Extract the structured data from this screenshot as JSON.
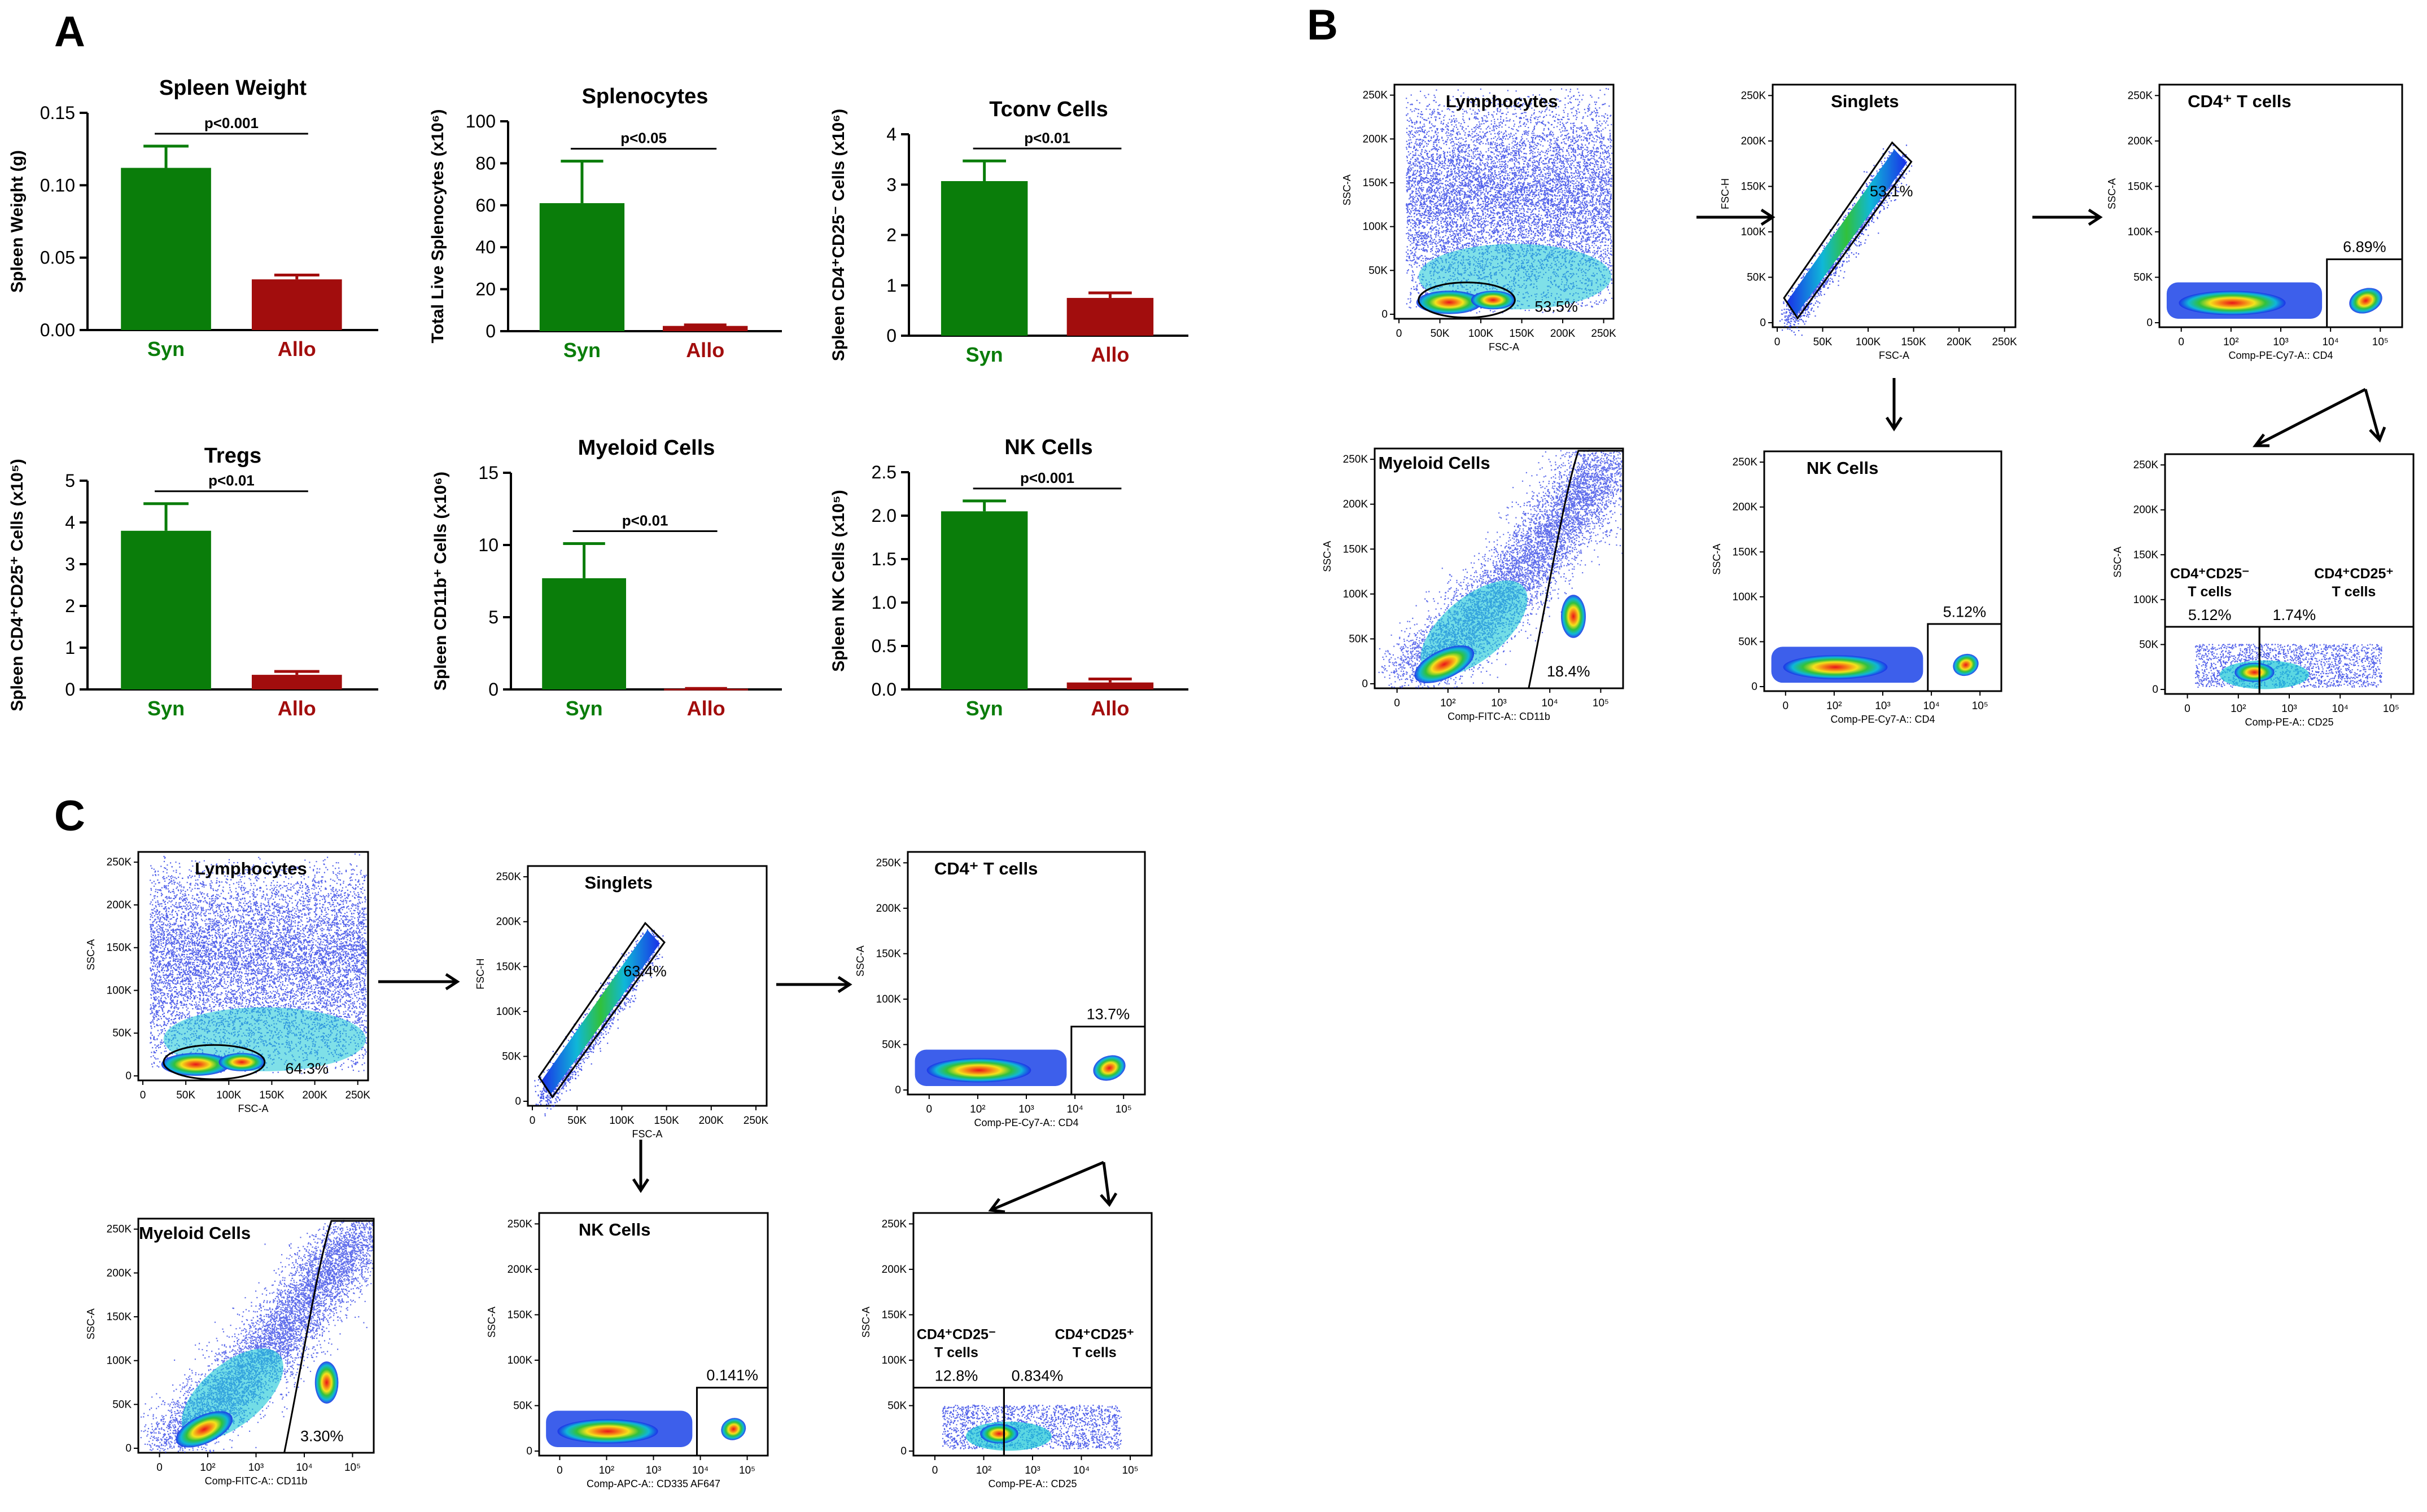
{
  "figure": {
    "panel_labels": {
      "A": "A",
      "B": "B",
      "C": "C"
    },
    "colors": {
      "syn": "#0a7d0a",
      "allo": "#a20d0d"
    }
  },
  "chart_data": [
    {
      "type": "bar",
      "title": "Spleen Weight",
      "ylabel": "Spleen Weight (g)",
      "ylim": [
        0,
        0.15
      ],
      "yticks": [
        "0.00",
        "0.05",
        "0.10",
        "0.15"
      ],
      "categories": [
        "Syn",
        "Allo"
      ],
      "values": [
        0.112,
        0.035
      ],
      "errors": [
        0.015,
        0.003
      ],
      "sig": "p<0.001"
    },
    {
      "type": "bar",
      "title": "Splenocytes",
      "ylabel": "Total Live Splenocytes (x10⁶)",
      "ylim": [
        0,
        100
      ],
      "yticks": [
        "0",
        "20",
        "40",
        "60",
        "80",
        "100"
      ],
      "categories": [
        "Syn",
        "Allo"
      ],
      "values": [
        61,
        2.5
      ],
      "errors": [
        20,
        0.5
      ],
      "sig": "p<0.05"
    },
    {
      "type": "bar",
      "title": "Tconv Cells",
      "ylabel": "Spleen CD4⁺CD25⁻ Cells (x10⁶)",
      "ylim": [
        0,
        4
      ],
      "yticks": [
        "0",
        "1",
        "2",
        "3",
        "4"
      ],
      "categories": [
        "Syn",
        "Allo"
      ],
      "values": [
        3.07,
        0.75
      ],
      "errors": [
        0.4,
        0.1
      ],
      "sig": "p<0.01"
    },
    {
      "type": "bar",
      "title": "Tregs",
      "ylabel": "Spleen CD4⁺CD25⁺ Cells (x10⁵)",
      "ylim": [
        0,
        5
      ],
      "yticks": [
        "0",
        "1",
        "2",
        "3",
        "4",
        "5"
      ],
      "categories": [
        "Syn",
        "Allo"
      ],
      "values": [
        3.8,
        0.35
      ],
      "errors": [
        0.65,
        0.08
      ],
      "sig": "p<0.01"
    },
    {
      "type": "bar",
      "title": "Myeloid Cells",
      "ylabel": "Spleen CD11b⁺ Cells (x10⁶)",
      "ylim": [
        0,
        15
      ],
      "yticks": [
        "0",
        "5",
        "10",
        "15"
      ],
      "categories": [
        "Syn",
        "Allo"
      ],
      "values": [
        7.7,
        0.05
      ],
      "errors": [
        2.4,
        0.02
      ],
      "sig": "p<0.01"
    },
    {
      "type": "bar",
      "title": "NK Cells",
      "ylabel": "Spleen NK Cells (x10⁵)",
      "ylim": [
        0,
        2.5
      ],
      "yticks": [
        "0.0",
        "0.5",
        "1.0",
        "1.5",
        "2.0",
        "2.5"
      ],
      "categories": [
        "Syn",
        "Allo"
      ],
      "values": [
        2.05,
        0.08
      ],
      "errors": [
        0.12,
        0.04
      ],
      "sig": "p<0.001"
    },
    {
      "type": "scatter",
      "panel": "B",
      "kind": "ellipse",
      "gate": "Lymphocytes",
      "pct": "53.5%",
      "xlabel": "FSC-A",
      "ylabel": "SSC-A",
      "xscale": "lin",
      "xmax": 260,
      "xticks": [
        "0",
        "50K",
        "100K",
        "150K",
        "200K",
        "250K"
      ],
      "yticks": [
        "0",
        "50K",
        "100K",
        "150K",
        "200K",
        "250K"
      ]
    },
    {
      "type": "scatter",
      "panel": "B",
      "kind": "diag",
      "gate": "Singlets",
      "pct": "53.1%",
      "xlabel": "FSC-A",
      "ylabel": "FSC-H",
      "xscale": "lin",
      "xmax": 260,
      "xticks": [
        "0",
        "50K",
        "100K",
        "150K",
        "200K",
        "250K"
      ],
      "yticks": [
        "0",
        "50K",
        "100K",
        "150K",
        "200K",
        "250K"
      ]
    },
    {
      "type": "scatter",
      "panel": "B",
      "kind": "cd4",
      "gate": "CD4⁺ T cells",
      "pct": "6.89%",
      "xlabel": "Comp-PE-Cy7-A:: CD4",
      "ylabel": "SSC-A",
      "xscale": "log",
      "xticks": [
        "0",
        "10²",
        "10³",
        "10⁴",
        "10⁵"
      ],
      "yticks": [
        "0",
        "50K",
        "100K",
        "150K",
        "200K",
        "250K"
      ]
    },
    {
      "type": "scatter",
      "panel": "B",
      "kind": "myeloid",
      "gate": "Myeloid Cells",
      "pct": "18.4%",
      "xlabel": "Comp-FITC-A:: CD11b",
      "ylabel": "SSC-A",
      "xscale": "log",
      "xticks": [
        "0",
        "10²",
        "10³",
        "10⁴",
        "10⁵"
      ],
      "yticks": [
        "0",
        "50K",
        "100K",
        "150K",
        "200K",
        "250K"
      ]
    },
    {
      "type": "scatter",
      "panel": "B",
      "kind": "nk",
      "gate": "NK Cells",
      "pct": "5.12%",
      "xlabel": "Comp-PE-Cy7-A:: CD4",
      "ylabel": "SSC-A",
      "xscale": "log",
      "xticks": [
        "0",
        "10²",
        "10³",
        "10⁴",
        "10⁵"
      ],
      "yticks": [
        "0",
        "50K",
        "100K",
        "150K",
        "200K",
        "250K"
      ]
    },
    {
      "type": "scatter",
      "panel": "B",
      "kind": "cd25",
      "gate_left": "CD4⁺CD25⁻",
      "gate_left2": "T cells",
      "gate_right": "CD4⁺CD25⁺",
      "gate_right2": "T cells",
      "pct_left": "5.12%",
      "pct_right": "1.74%",
      "xlabel": "Comp-PE-A:: CD25",
      "ylabel": "SSC-A",
      "xscale": "log",
      "xticks": [
        "0",
        "10²",
        "10³",
        "10⁴",
        "10⁵"
      ],
      "yticks": [
        "0",
        "50K",
        "100K",
        "150K",
        "200K",
        "250K"
      ]
    },
    {
      "type": "scatter",
      "panel": "C",
      "kind": "ellipse",
      "gate": "Lymphocytes",
      "pct": "64.3%",
      "xlabel": "FSC-A",
      "ylabel": "SSC-A",
      "xscale": "lin",
      "xmax": 260,
      "xticks": [
        "0",
        "50K",
        "100K",
        "150K",
        "200K",
        "250K"
      ],
      "yticks": [
        "0",
        "50K",
        "100K",
        "150K",
        "200K",
        "250K"
      ]
    },
    {
      "type": "scatter",
      "panel": "C",
      "kind": "diag",
      "gate": "Singlets",
      "pct": "63.4%",
      "xlabel": "FSC-A",
      "ylabel": "FSC-H",
      "xscale": "lin",
      "xmax": 260,
      "xticks": [
        "0",
        "50K",
        "100K",
        "150K",
        "200K",
        "250K"
      ],
      "yticks": [
        "0",
        "50K",
        "100K",
        "150K",
        "200K",
        "250K"
      ]
    },
    {
      "type": "scatter",
      "panel": "C",
      "kind": "cd4",
      "gate": "CD4⁺ T cells",
      "pct": "13.7%",
      "xlabel": "Comp-PE-Cy7-A:: CD4",
      "ylabel": "SSC-A",
      "xscale": "log",
      "xticks": [
        "0",
        "10²",
        "10³",
        "10⁴",
        "10⁵"
      ],
      "yticks": [
        "0",
        "50K",
        "100K",
        "150K",
        "200K",
        "250K"
      ]
    },
    {
      "type": "scatter",
      "panel": "C",
      "kind": "myeloid",
      "gate": "Myeloid Cells",
      "pct": "3.30%",
      "xlabel": "Comp-FITC-A:: CD11b",
      "ylabel": "SSC-A",
      "xscale": "log",
      "xticks": [
        "0",
        "10²",
        "10³",
        "10⁴",
        "10⁵"
      ],
      "yticks": [
        "0",
        "50K",
        "100K",
        "150K",
        "200K",
        "250K"
      ]
    },
    {
      "type": "scatter",
      "panel": "C",
      "kind": "nk",
      "gate": "NK Cells",
      "pct": "0.141%",
      "xlabel": "Comp-APC-A:: CD335 AF647",
      "ylabel": "SSC-A",
      "xscale": "log",
      "xticks": [
        "0",
        "10²",
        "10³",
        "10⁴",
        "10⁵"
      ],
      "yticks": [
        "0",
        "50K",
        "100K",
        "150K",
        "200K",
        "250K"
      ]
    },
    {
      "type": "scatter",
      "panel": "C",
      "kind": "cd25",
      "gate_left": "CD4⁺CD25⁻",
      "gate_left2": "T cells",
      "gate_right": "CD4⁺CD25⁺",
      "gate_right2": "T cells",
      "pct_left": "12.8%",
      "pct_right": "0.834%",
      "xlabel": "Comp-PE-A:: CD25",
      "ylabel": "SSC-A",
      "xscale": "log",
      "xticks": [
        "0",
        "10²",
        "10³",
        "10⁴",
        "10⁵"
      ],
      "yticks": [
        "0",
        "50K",
        "100K",
        "150K",
        "200K",
        "250K"
      ]
    }
  ]
}
